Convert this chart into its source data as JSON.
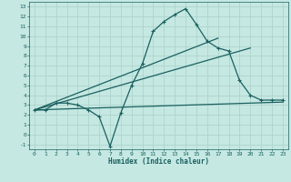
{
  "title": "",
  "xlabel": "Humidex (Indice chaleur)",
  "xlim": [
    -0.5,
    23.5
  ],
  "ylim": [
    -1.5,
    13.5
  ],
  "xticks": [
    0,
    1,
    2,
    3,
    4,
    5,
    6,
    7,
    8,
    9,
    10,
    11,
    12,
    13,
    14,
    15,
    16,
    17,
    18,
    19,
    20,
    21,
    22,
    23
  ],
  "yticks": [
    -1,
    0,
    1,
    2,
    3,
    4,
    5,
    6,
    7,
    8,
    9,
    10,
    11,
    12,
    13
  ],
  "background_color": "#c5e8e2",
  "grid_color": "#aed4cc",
  "line_color": "#1a6060",
  "line_width": 0.9,
  "marker": "+",
  "marker_size": 3.5,
  "curve1_x": [
    0,
    1,
    2,
    3,
    4,
    5,
    6,
    7,
    8,
    9,
    10,
    11,
    12,
    13,
    14,
    15,
    16,
    17,
    18,
    19,
    20,
    21,
    22,
    23
  ],
  "curve1_y": [
    2.5,
    2.5,
    3.2,
    3.2,
    3.0,
    2.5,
    1.8,
    -1.2,
    2.2,
    5.0,
    7.2,
    10.5,
    11.5,
    12.2,
    12.8,
    11.2,
    9.5,
    8.8,
    8.5,
    5.5,
    4.0,
    3.5,
    3.5,
    3.5
  ],
  "line1_x": [
    0,
    23
  ],
  "line1_y": [
    2.5,
    3.3
  ],
  "line2_x": [
    0,
    20
  ],
  "line2_y": [
    2.5,
    8.8
  ],
  "line3_x": [
    0,
    17
  ],
  "line3_y": [
    2.5,
    9.8
  ]
}
